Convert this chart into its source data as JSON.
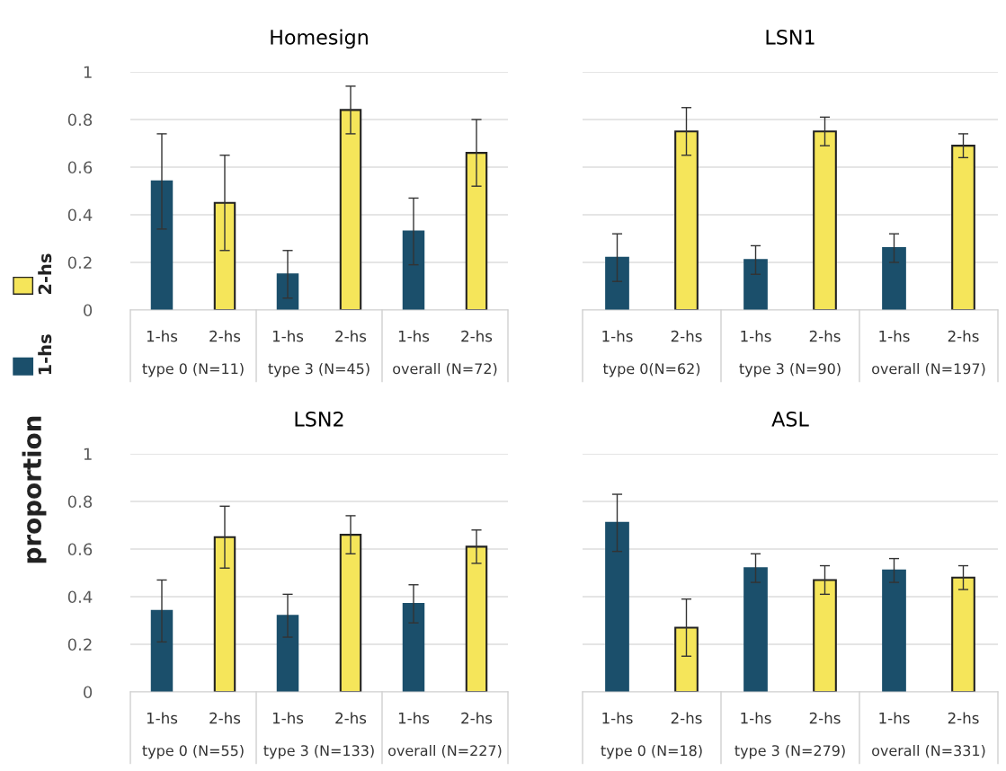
{
  "chart_data": [
    {
      "type": "bar",
      "title": "Homesign",
      "ylabel": "proportion",
      "categories": [
        "type 0 (N=11)",
        "type 3 (N=45)",
        "overall (N=72)"
      ],
      "ylim": [
        0,
        1
      ],
      "yticks": [
        0,
        0.2,
        0.4,
        0.6,
        0.8,
        1
      ],
      "grid": "y",
      "legend": "left",
      "series": [
        {
          "name": "1-hs",
          "color": "#1b4f6b",
          "values": [
            0.54,
            0.15,
            0.33
          ],
          "errors": [
            0.2,
            0.1,
            0.14
          ]
        },
        {
          "name": "2-hs",
          "color": "#f5e55a",
          "values": [
            0.45,
            0.84,
            0.66
          ],
          "errors": [
            0.2,
            0.1,
            0.14
          ]
        }
      ]
    },
    {
      "type": "bar",
      "title": "LSN1",
      "categories": [
        "type 0(N=62)",
        "type 3 (N=90)",
        "overall (N=197)"
      ],
      "ylim": [
        0,
        1
      ],
      "yticks": [
        0,
        0.2,
        0.4,
        0.6,
        0.8,
        1
      ],
      "grid": "y",
      "tick_labels": "x",
      "series": [
        {
          "name": "1-hs",
          "color": "#1b4f6b",
          "values": [
            0.22,
            0.21,
            0.26
          ],
          "errors": [
            0.1,
            0.06,
            0.06
          ]
        },
        {
          "name": "2-hs",
          "color": "#f5e55a",
          "values": [
            0.75,
            0.75,
            0.69
          ],
          "errors": [
            0.1,
            0.06,
            0.05
          ]
        }
      ]
    },
    {
      "type": "bar",
      "title": "LSN2",
      "categories": [
        "type 0 (N=55)",
        "type 3 (N=133)",
        "overall (N=227)"
      ],
      "ylim": [
        0,
        1
      ],
      "yticks": [
        0,
        0.2,
        0.4,
        0.6,
        0.8,
        1
      ],
      "grid": "y",
      "series": [
        {
          "name": "1-hs",
          "color": "#1b4f6b",
          "values": [
            0.34,
            0.32,
            0.37
          ],
          "errors": [
            0.13,
            0.09,
            0.08
          ]
        },
        {
          "name": "2-hs",
          "color": "#f5e55a",
          "values": [
            0.65,
            0.66,
            0.61
          ],
          "errors": [
            0.13,
            0.08,
            0.07
          ]
        }
      ]
    },
    {
      "type": "bar",
      "title": "ASL",
      "categories": [
        "type 0 (N=18)",
        "type 3 (N=279)",
        "overall (N=331)"
      ],
      "ylim": [
        0,
        1
      ],
      "yticks": [
        0,
        0.2,
        0.4,
        0.6,
        0.8,
        1
      ],
      "grid": "y",
      "tick_labels": "x",
      "series": [
        {
          "name": "1-hs",
          "color": "#1b4f6b",
          "values": [
            0.71,
            0.52,
            0.51
          ],
          "errors": [
            0.12,
            0.06,
            0.05
          ]
        },
        {
          "name": "2-hs",
          "color": "#f5e55a",
          "values": [
            0.27,
            0.47,
            0.48
          ],
          "errors": [
            0.12,
            0.06,
            0.05
          ]
        }
      ]
    }
  ]
}
